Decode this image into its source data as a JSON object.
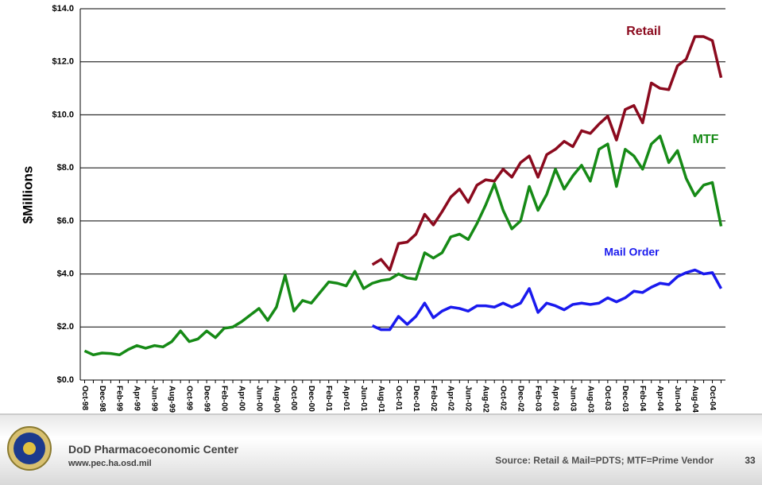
{
  "chart_data": {
    "type": "line",
    "y_label": "$Millions",
    "categories": [
      "Oct-98",
      null,
      "Dec-98",
      null,
      "Feb-99",
      null,
      "Apr-99",
      null,
      "Jun-99",
      null,
      "Aug-99",
      null,
      "Oct-99",
      null,
      "Dec-99",
      null,
      "Feb-00",
      null,
      "Apr-00",
      null,
      "Jun-00",
      null,
      "Aug-00",
      null,
      "Oct-00",
      null,
      "Dec-00",
      null,
      "Feb-01",
      null,
      "Apr-01",
      null,
      "Jun-01",
      null,
      "Aug-01",
      null,
      "Oct-01",
      null,
      "Dec-01",
      null,
      "Feb-02",
      null,
      "Apr-02",
      null,
      "Jun-02",
      null,
      "Aug-02",
      null,
      "Oct-02",
      null,
      "Dec-02",
      null,
      "Feb-03",
      null,
      "Apr-03",
      null,
      "Jun-03",
      null,
      "Aug-03",
      null,
      "Oct-03",
      null,
      "Dec-03",
      null,
      "Feb-04",
      null,
      "Apr-04",
      null,
      "Jun-04",
      null,
      "Aug-04",
      null,
      "Oct-04",
      null
    ],
    "series": [
      {
        "name": "Retail",
        "color": "#8b0a1e",
        "values": [
          null,
          null,
          null,
          null,
          null,
          null,
          null,
          null,
          null,
          null,
          null,
          null,
          null,
          null,
          null,
          null,
          null,
          null,
          null,
          null,
          null,
          null,
          null,
          null,
          null,
          null,
          null,
          null,
          null,
          null,
          null,
          null,
          null,
          4.35,
          4.55,
          4.15,
          5.15,
          5.2,
          5.5,
          6.25,
          5.85,
          6.35,
          6.9,
          7.2,
          6.7,
          7.35,
          7.55,
          7.5,
          7.95,
          7.65,
          8.2,
          8.45,
          7.65,
          8.5,
          8.7,
          9.0,
          8.8,
          9.4,
          9.3,
          9.65,
          9.95,
          9.05,
          10.2,
          10.35,
          9.7,
          11.2,
          11.0,
          10.95,
          11.85,
          12.1,
          12.95,
          12.95,
          12.8,
          11.4
        ]
      },
      {
        "name": "MTF",
        "color": "#168a16",
        "values": [
          1.1,
          0.95,
          1.02,
          1.0,
          0.95,
          1.15,
          1.3,
          1.2,
          1.3,
          1.25,
          1.45,
          1.85,
          1.45,
          1.55,
          1.85,
          1.6,
          1.95,
          2.0,
          2.2,
          2.45,
          2.7,
          2.25,
          2.75,
          3.95,
          2.6,
          3.0,
          2.9,
          3.3,
          3.7,
          3.65,
          3.55,
          4.1,
          3.45,
          3.65,
          3.75,
          3.8,
          4.0,
          3.85,
          3.8,
          4.8,
          4.6,
          4.8,
          5.4,
          5.5,
          5.3,
          5.9,
          6.6,
          7.4,
          6.4,
          5.7,
          6.0,
          7.3,
          6.4,
          7.0,
          7.95,
          7.2,
          7.7,
          8.1,
          7.5,
          8.7,
          8.9,
          7.3,
          8.7,
          8.45,
          7.95,
          8.9,
          9.2,
          8.2,
          8.65,
          7.6,
          6.95,
          7.35,
          7.45,
          5.8
        ]
      },
      {
        "name": "Mail Order",
        "color": "#1a1aee",
        "values": [
          null,
          null,
          null,
          null,
          null,
          null,
          null,
          null,
          null,
          null,
          null,
          null,
          null,
          null,
          null,
          null,
          null,
          null,
          null,
          null,
          null,
          null,
          null,
          null,
          null,
          null,
          null,
          null,
          null,
          null,
          null,
          null,
          null,
          2.05,
          1.9,
          1.9,
          2.4,
          2.1,
          2.4,
          2.9,
          2.35,
          2.6,
          2.75,
          2.7,
          2.6,
          2.8,
          2.8,
          2.75,
          2.9,
          2.75,
          2.9,
          3.45,
          2.55,
          2.9,
          2.8,
          2.65,
          2.85,
          2.9,
          2.85,
          2.9,
          3.1,
          2.95,
          3.1,
          3.35,
          3.3,
          3.5,
          3.65,
          3.6,
          3.9,
          4.05,
          4.15,
          4.0,
          4.05,
          3.45
        ]
      }
    ],
    "ylim": [
      0,
      14
    ],
    "yticks": [
      {
        "value": 0,
        "label": "$0.0"
      },
      {
        "value": 2,
        "label": "$2.0"
      },
      {
        "value": 4,
        "label": "$4.0"
      },
      {
        "value": 6,
        "label": "$6.0"
      },
      {
        "value": 8,
        "label": "$8.0"
      },
      {
        "value": 10,
        "label": "$10.0"
      },
      {
        "value": 12,
        "label": "$12.0"
      },
      {
        "value": 14,
        "label": "$14.0"
      }
    ],
    "grid": true
  },
  "footer": {
    "organization": "DoD Pharmacoeconomic Center",
    "url": "www.pec.ha.osd.mil",
    "source": "Source: Retail & Mail=PDTS; MTF=Prime Vendor",
    "page_number": "33"
  }
}
